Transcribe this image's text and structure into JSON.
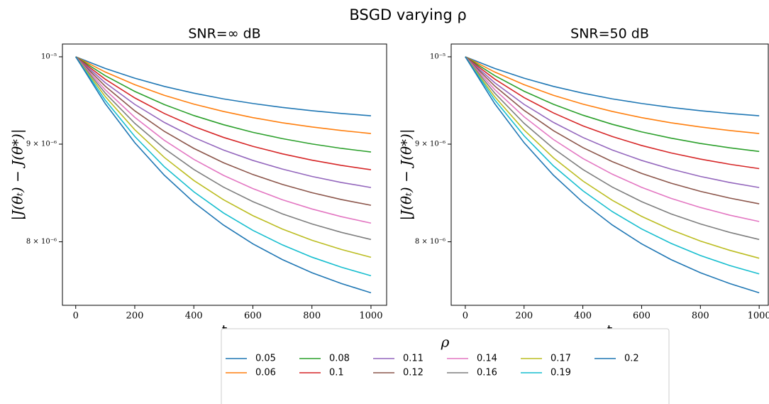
{
  "figure": {
    "title": "BSGD varying ρ",
    "legend_title": "ρ",
    "legend_position": "lower center"
  },
  "chart_data": [
    {
      "type": "line",
      "title": "SNR=∞ dB",
      "x_label": "t",
      "y_label": "|J(θₜ) − J(θ*)|",
      "yscale": "log",
      "xlim": [
        -45,
        1053
      ],
      "ylim": [
        7.41e-06,
        1.0155e-05
      ],
      "xticks": [
        0,
        200,
        400,
        600,
        800,
        1000
      ],
      "yticks": [
        {
          "value": 8e-06,
          "label": "8 × 10⁻⁶"
        },
        {
          "value": 9e-06,
          "label": "9 × 10⁻⁶"
        },
        {
          "value": 1e-05,
          "label": "10⁻⁵"
        }
      ],
      "x": [
        0,
        100,
        200,
        300,
        400,
        500,
        600,
        700,
        800,
        900,
        1000
      ],
      "series": [
        {
          "name": "0.05",
          "color": "#1f77b4",
          "values": [
            1e-05,
            9.86e-06,
            9.745e-06,
            9.649e-06,
            9.571e-06,
            9.505e-06,
            9.452e-06,
            9.407e-06,
            9.37e-06,
            9.339e-06,
            9.313e-06
          ]
        },
        {
          "name": "0.06",
          "color": "#ff7f0e",
          "values": [
            1e-05,
            9.818e-06,
            9.669e-06,
            9.546e-06,
            9.445e-06,
            9.362e-06,
            9.292e-06,
            9.235e-06,
            9.188e-06,
            9.149e-06,
            9.116e-06
          ]
        },
        {
          "name": "0.08",
          "color": "#2ca02c",
          "values": [
            1e-05,
            9.775e-06,
            9.591e-06,
            9.44e-06,
            9.316e-06,
            9.214e-06,
            9.129e-06,
            9.06e-06,
            9.002e-06,
            8.954e-06,
            8.915e-06
          ]
        },
        {
          "name": "0.1",
          "color": "#d62728",
          "values": [
            1e-05,
            9.733e-06,
            9.516e-06,
            9.339e-06,
            9.194e-06,
            9.074e-06,
            8.976e-06,
            8.895e-06,
            8.828e-06,
            8.772e-06,
            8.726e-06
          ]
        },
        {
          "name": "0.11",
          "color": "#9467bd",
          "values": [
            1e-05,
            9.692e-06,
            9.442e-06,
            9.239e-06,
            9.073e-06,
            8.937e-06,
            8.825e-06,
            8.733e-06,
            8.656e-06,
            8.593e-06,
            8.541e-06
          ]
        },
        {
          "name": "0.12",
          "color": "#8c564b",
          "values": [
            1e-05,
            9.651e-06,
            9.369e-06,
            9.14e-06,
            8.954e-06,
            8.801e-06,
            8.676e-06,
            8.573e-06,
            8.488e-06,
            8.418e-06,
            8.36e-06
          ]
        },
        {
          "name": "0.14",
          "color": "#e377c2",
          "values": [
            1e-05,
            9.61e-06,
            9.296e-06,
            9.042e-06,
            8.836e-06,
            8.668e-06,
            8.53e-06,
            8.416e-06,
            8.323e-06,
            8.246e-06,
            8.182e-06
          ]
        },
        {
          "name": "0.16",
          "color": "#7f7f7f",
          "values": [
            1e-05,
            9.572e-06,
            9.229e-06,
            8.953e-06,
            8.729e-06,
            8.546e-06,
            8.397e-06,
            8.274e-06,
            8.174e-06,
            8.091e-06,
            8.022e-06
          ]
        },
        {
          "name": "0.17",
          "color": "#bcbd22",
          "values": [
            1e-05,
            9.532e-06,
            9.158e-06,
            8.857e-06,
            8.614e-06,
            8.417e-06,
            8.256e-06,
            8.124e-06,
            8.015e-06,
            7.926e-06,
            7.852e-06
          ]
        },
        {
          "name": "0.19",
          "color": "#17becf",
          "values": [
            1e-05,
            9.49e-06,
            9.084e-06,
            8.758e-06,
            8.497e-06,
            8.284e-06,
            8.111e-06,
            7.97e-06,
            7.853e-06,
            7.758e-06,
            7.679e-06
          ]
        },
        {
          "name": "0.2",
          "color": "#1f77b4",
          "values": [
            1e-05,
            9.451e-06,
            9.016e-06,
            8.669e-06,
            8.39e-06,
            8.164e-06,
            7.98e-06,
            7.83e-06,
            7.707e-06,
            7.607e-06,
            7.523e-06
          ]
        }
      ]
    },
    {
      "type": "line",
      "title": "SNR=50 dB",
      "x_label": "t",
      "y_label": "|J(θₜ) − J(θ*)|",
      "yscale": "log",
      "xlim": [
        -48,
        1031
      ],
      "ylim": [
        7.41e-06,
        1.0155e-05
      ],
      "xticks": [
        0,
        200,
        400,
        600,
        800,
        1000
      ],
      "yticks": [
        {
          "value": 8e-06,
          "label": "8 × 10⁻⁶"
        },
        {
          "value": 9e-06,
          "label": "9 × 10⁻⁶"
        },
        {
          "value": 1e-05,
          "label": "10⁻⁵"
        }
      ],
      "x": [
        0,
        100,
        200,
        300,
        400,
        500,
        600,
        700,
        800,
        900,
        1000
      ],
      "series": [
        {
          "name": "0.05",
          "color": "#1f77b4",
          "values": [
            1e-05,
            9.86e-06,
            9.745e-06,
            9.649e-06,
            9.571e-06,
            9.505e-06,
            9.452e-06,
            9.407e-06,
            9.37e-06,
            9.339e-06,
            9.313e-06
          ]
        },
        {
          "name": "0.06",
          "color": "#ff7f0e",
          "values": [
            1e-05,
            9.818e-06,
            9.669e-06,
            9.546e-06,
            9.445e-06,
            9.362e-06,
            9.292e-06,
            9.235e-06,
            9.188e-06,
            9.149e-06,
            9.116e-06
          ]
        },
        {
          "name": "0.08",
          "color": "#2ca02c",
          "values": [
            1e-05,
            9.776e-06,
            9.593e-06,
            9.443e-06,
            9.32e-06,
            9.218e-06,
            9.134e-06,
            9.065e-06,
            9.007e-06,
            8.96e-06,
            8.921e-06
          ]
        },
        {
          "name": "0.1",
          "color": "#d62728",
          "values": [
            1e-05,
            9.735e-06,
            9.52e-06,
            9.345e-06,
            9.201e-06,
            9.083e-06,
            8.985e-06,
            8.905e-06,
            8.839e-06,
            8.784e-06,
            8.738e-06
          ]
        },
        {
          "name": "0.11",
          "color": "#9467bd",
          "values": [
            1e-05,
            9.692e-06,
            9.442e-06,
            9.239e-06,
            9.073e-06,
            8.937e-06,
            8.825e-06,
            8.733e-06,
            8.656e-06,
            8.593e-06,
            8.541e-06
          ]
        },
        {
          "name": "0.12",
          "color": "#8c564b",
          "values": [
            1e-05,
            9.654e-06,
            9.374e-06,
            9.147e-06,
            8.963e-06,
            8.812e-06,
            8.688e-06,
            8.586e-06,
            8.502e-06,
            8.433e-06,
            8.375e-06
          ]
        },
        {
          "name": "0.14",
          "color": "#e377c2",
          "values": [
            1e-05,
            9.613e-06,
            9.302e-06,
            9.05e-06,
            8.846e-06,
            8.68e-06,
            8.543e-06,
            8.43e-06,
            8.338e-06,
            8.261e-06,
            8.198e-06
          ]
        },
        {
          "name": "0.16",
          "color": "#7f7f7f",
          "values": [
            1e-05,
            9.572e-06,
            9.229e-06,
            8.953e-06,
            8.729e-06,
            8.546e-06,
            8.397e-06,
            8.274e-06,
            8.174e-06,
            8.091e-06,
            8.022e-06
          ]
        },
        {
          "name": "0.17",
          "color": "#bcbd22",
          "values": [
            1e-05,
            9.53e-06,
            9.155e-06,
            8.853e-06,
            8.609e-06,
            8.411e-06,
            8.249e-06,
            8.117e-06,
            8.007e-06,
            7.918e-06,
            7.843e-06
          ]
        },
        {
          "name": "0.19",
          "color": "#17becf",
          "values": [
            1e-05,
            9.494e-06,
            9.091e-06,
            8.767e-06,
            8.508e-06,
            8.297e-06,
            8.125e-06,
            7.985e-06,
            7.869e-06,
            7.774e-06,
            7.696e-06
          ]
        },
        {
          "name": "0.2",
          "color": "#1f77b4",
          "values": [
            1e-05,
            9.451e-06,
            9.016e-06,
            8.669e-06,
            8.39e-06,
            8.164e-06,
            7.98e-06,
            7.83e-06,
            7.707e-06,
            7.607e-06,
            7.523e-06
          ]
        }
      ]
    }
  ]
}
